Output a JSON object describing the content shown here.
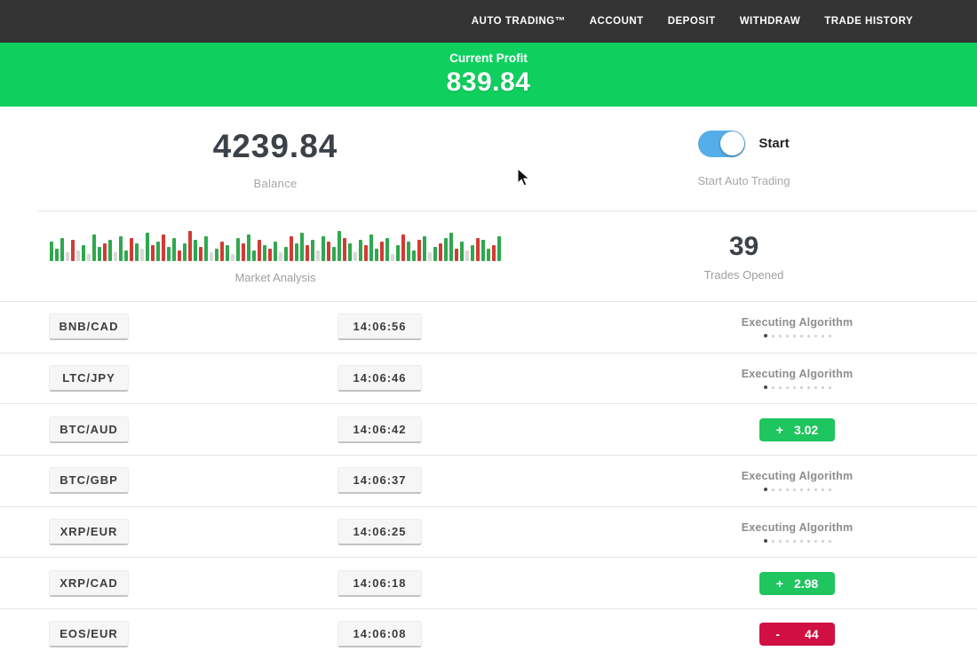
{
  "nav": {
    "items": [
      {
        "label": "AUTO TRADING™"
      },
      {
        "label": "ACCOUNT"
      },
      {
        "label": "DEPOSIT"
      },
      {
        "label": "WITHDRAW"
      },
      {
        "label": "TRADE HISTORY"
      }
    ]
  },
  "profit_banner": {
    "label": "Current Profit",
    "value": "839.84",
    "bg_color": "#0fd05e"
  },
  "account": {
    "balance_value": "4239.84",
    "balance_label": "Balance",
    "toggle_label": "Start",
    "toggle_caption": "Start Auto Trading",
    "toggle_on": true,
    "toggle_color": "#55aee9"
  },
  "market": {
    "label": "Market Analysis",
    "bar_colors": {
      "g": "#2fa84f",
      "r": "#d23b35",
      "l": "#d8d8d8"
    },
    "bars": [
      [
        "g",
        22
      ],
      [
        "g",
        14
      ],
      [
        "g",
        26
      ],
      [
        "l",
        10
      ],
      [
        "r",
        24
      ],
      [
        "l",
        12
      ],
      [
        "g",
        18
      ],
      [
        "l",
        8
      ],
      [
        "g",
        30
      ],
      [
        "g",
        16
      ],
      [
        "r",
        20
      ],
      [
        "g",
        24
      ],
      [
        "l",
        10
      ],
      [
        "g",
        28
      ],
      [
        "g",
        12
      ],
      [
        "r",
        26
      ],
      [
        "g",
        20
      ],
      [
        "l",
        14
      ],
      [
        "g",
        32
      ],
      [
        "r",
        18
      ],
      [
        "g",
        22
      ],
      [
        "r",
        30
      ],
      [
        "g",
        16
      ],
      [
        "g",
        26
      ],
      [
        "r",
        12
      ],
      [
        "g",
        20
      ],
      [
        "r",
        34
      ],
      [
        "g",
        24
      ],
      [
        "r",
        16
      ],
      [
        "g",
        28
      ],
      [
        "l",
        10
      ],
      [
        "g",
        14
      ],
      [
        "r",
        22
      ],
      [
        "g",
        18
      ],
      [
        "l",
        8
      ],
      [
        "g",
        26
      ],
      [
        "r",
        20
      ],
      [
        "g",
        30
      ],
      [
        "g",
        12
      ],
      [
        "r",
        24
      ],
      [
        "g",
        18
      ],
      [
        "r",
        14
      ],
      [
        "g",
        22
      ],
      [
        "l",
        10
      ],
      [
        "g",
        16
      ],
      [
        "r",
        28
      ],
      [
        "g",
        20
      ],
      [
        "g",
        32
      ],
      [
        "r",
        18
      ],
      [
        "g",
        24
      ],
      [
        "l",
        12
      ],
      [
        "g",
        28
      ],
      [
        "r",
        22
      ],
      [
        "g",
        16
      ],
      [
        "g",
        34
      ],
      [
        "r",
        26
      ],
      [
        "g",
        20
      ],
      [
        "l",
        10
      ],
      [
        "g",
        24
      ],
      [
        "r",
        18
      ],
      [
        "g",
        30
      ],
      [
        "g",
        14
      ],
      [
        "r",
        22
      ],
      [
        "g",
        26
      ],
      [
        "l",
        8
      ],
      [
        "g",
        18
      ],
      [
        "r",
        30
      ],
      [
        "g",
        22
      ],
      [
        "g",
        12
      ],
      [
        "r",
        24
      ],
      [
        "g",
        28
      ],
      [
        "l",
        10
      ],
      [
        "g",
        16
      ],
      [
        "r",
        20
      ],
      [
        "g",
        26
      ],
      [
        "g",
        32
      ],
      [
        "r",
        14
      ],
      [
        "g",
        22
      ],
      [
        "l",
        12
      ],
      [
        "g",
        18
      ],
      [
        "r",
        26
      ],
      [
        "g",
        24
      ],
      [
        "g",
        14
      ],
      [
        "r",
        18
      ],
      [
        "g",
        28
      ]
    ]
  },
  "trades": {
    "count": "39",
    "count_label": "Trades Opened"
  },
  "table": {
    "executing_dots": {
      "count": 10,
      "active_index": 0
    },
    "badge_colors": {
      "green": "#1fc55e",
      "red": "#d10f42"
    },
    "rows": [
      {
        "pair": "BNB/CAD",
        "time": "14:06:56",
        "status": "executing",
        "status_label": "Executing Algorithm"
      },
      {
        "pair": "LTC/JPY",
        "time": "14:06:46",
        "status": "executing",
        "status_label": "Executing Algorithm"
      },
      {
        "pair": "BTC/AUD",
        "time": "14:06:42",
        "status": "result",
        "sign": "+",
        "value": "3.02",
        "color": "green"
      },
      {
        "pair": "BTC/GBP",
        "time": "14:06:37",
        "status": "executing",
        "status_label": "Executing Algorithm"
      },
      {
        "pair": "XRP/EUR",
        "time": "14:06:25",
        "status": "executing",
        "status_label": "Executing Algorithm"
      },
      {
        "pair": "XRP/CAD",
        "time": "14:06:18",
        "status": "result",
        "sign": "+",
        "value": "2.98",
        "color": "green"
      },
      {
        "pair": "EOS/EUR",
        "time": "14:06:08",
        "status": "result",
        "sign": "-",
        "value": "44",
        "color": "red"
      }
    ]
  }
}
